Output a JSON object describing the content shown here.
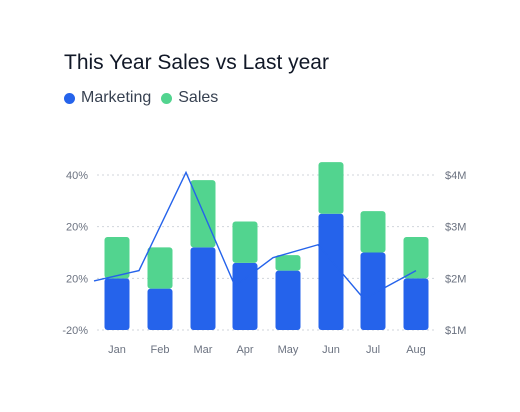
{
  "chart_data": {
    "type": "bar",
    "title": "This Year Sales vs Last year",
    "categories": [
      "Jan",
      "Feb",
      "Mar",
      "Apr",
      "May",
      "Jun",
      "Jul",
      "Aug"
    ],
    "series": [
      {
        "name": "Marketing",
        "kind": "bar",
        "stack": "main",
        "color": "#2563eb",
        "values": [
          1.0,
          0.8,
          1.6,
          1.3,
          1.15,
          2.25,
          1.5,
          1.0
        ]
      },
      {
        "name": "Sales",
        "kind": "bar",
        "stack": "main",
        "color": "#52d48f",
        "values": [
          0.8,
          0.8,
          1.3,
          0.8,
          0.3,
          1.0,
          0.8,
          0.8
        ]
      },
      {
        "kind": "line",
        "color": "#2563eb",
        "values": [
          2.1,
          2.15,
          4.05,
          1.85,
          2.4,
          2.65,
          1.6,
          2.15
        ]
      }
    ],
    "y_left_ticks": [
      "-20%",
      "20%",
      "20%",
      "40%"
    ],
    "y_right_ticks": [
      "$1M",
      "$2M",
      "$3M",
      "$4M"
    ],
    "ylim": [
      1,
      4
    ],
    "grid": true,
    "legend_position": "top-left"
  }
}
